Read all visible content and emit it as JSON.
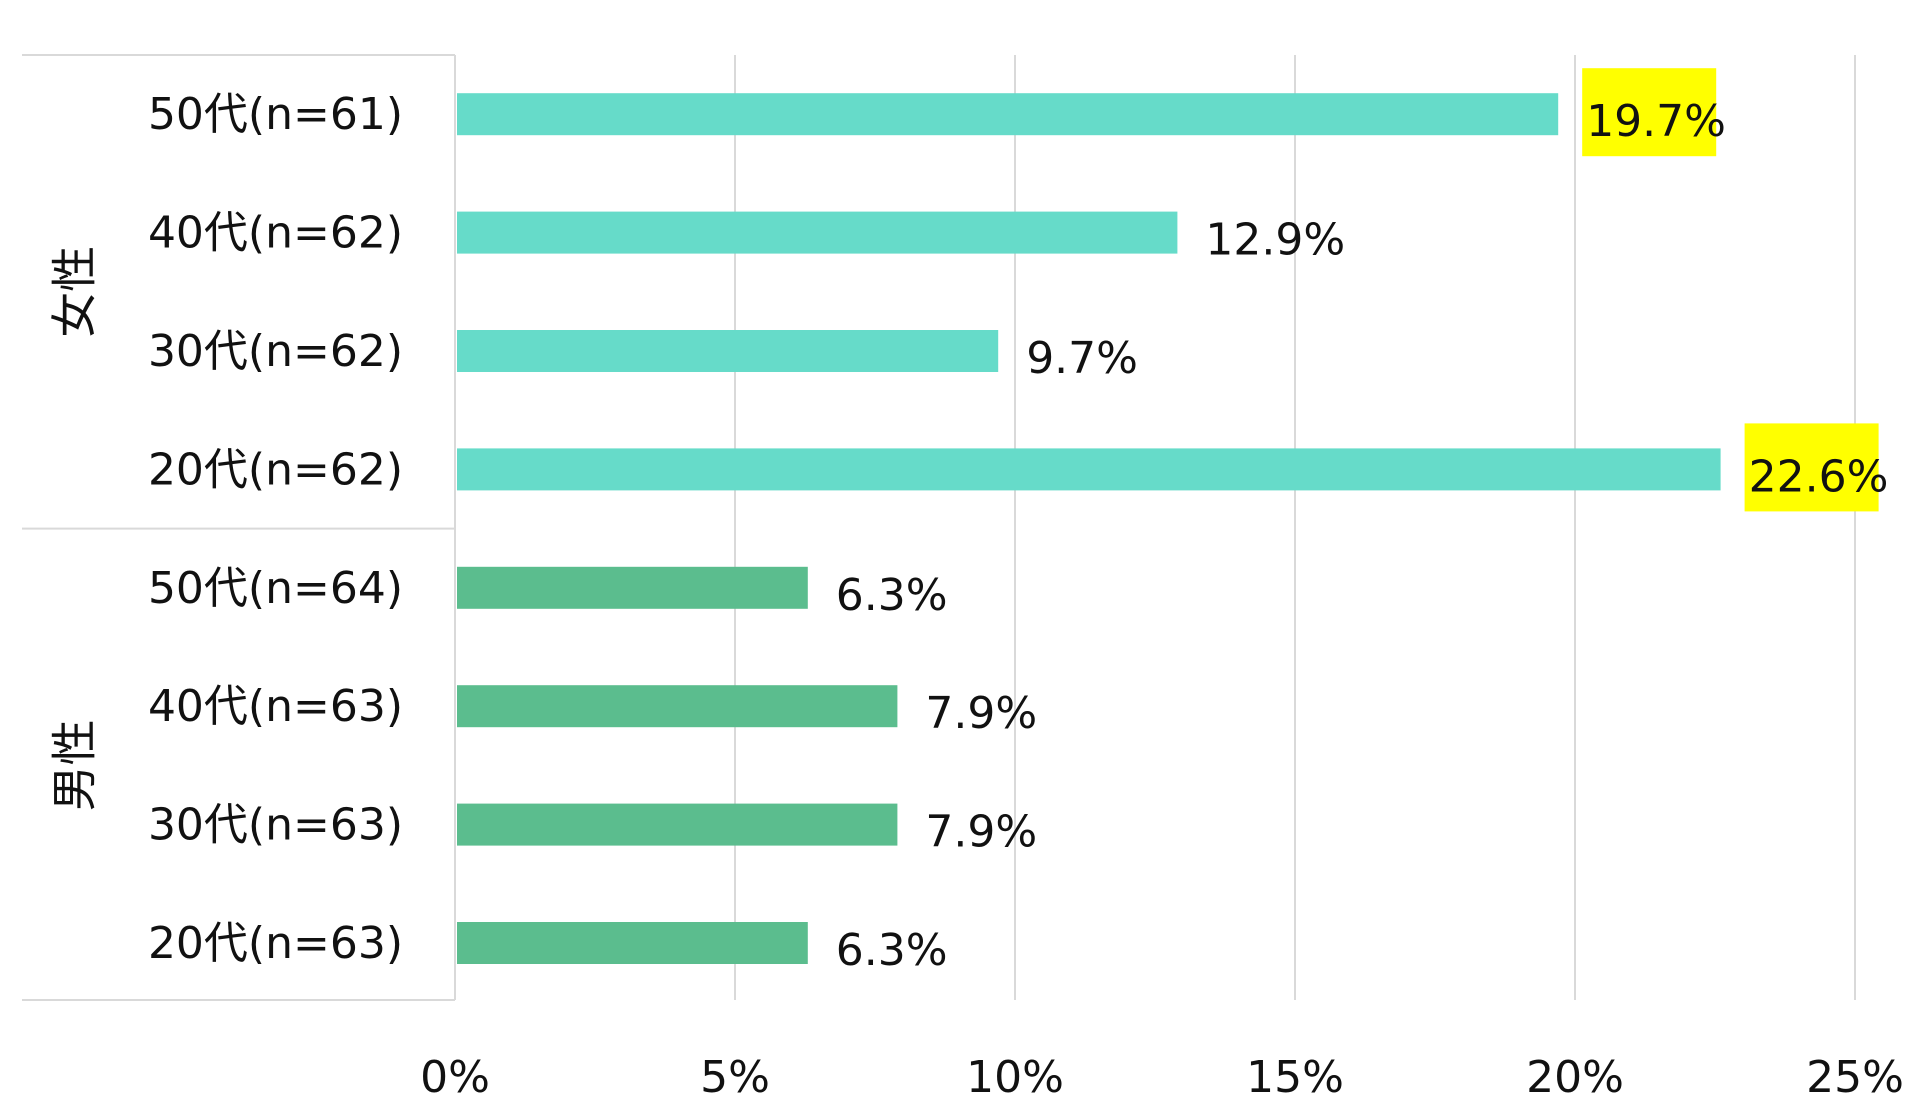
{
  "chart_data": {
    "type": "bar",
    "orientation": "horizontal",
    "title": "",
    "xlabel": "",
    "ylabel": "",
    "xlim": [
      0,
      25
    ],
    "x_ticks": [
      {
        "value": 0,
        "label": "0%"
      },
      {
        "value": 5,
        "label": "5%"
      },
      {
        "value": 10,
        "label": "10%"
      },
      {
        "value": 15,
        "label": "15%"
      },
      {
        "value": 20,
        "label": "20%"
      },
      {
        "value": 25,
        "label": "25%"
      }
    ],
    "grid": "vertical",
    "legend": "none",
    "highlight_color": "#ffff00",
    "groups": [
      {
        "name": "女性",
        "color": "#66dbc9",
        "bars": [
          {
            "label": "50代(n=61)",
            "value": 19.7,
            "value_label": "19.7%",
            "highlight": true
          },
          {
            "label": "40代(n=62)",
            "value": 12.9,
            "value_label": "12.9%",
            "highlight": false
          },
          {
            "label": "30代(n=62)",
            "value": 9.7,
            "value_label": "9.7%",
            "highlight": false
          },
          {
            "label": "20代(n=62)",
            "value": 22.6,
            "value_label": "22.6%",
            "highlight": true
          }
        ]
      },
      {
        "name": "男性",
        "color": "#5bbd8e",
        "bars": [
          {
            "label": "50代(n=64)",
            "value": 6.3,
            "value_label": "6.3%",
            "highlight": false
          },
          {
            "label": "40代(n=63)",
            "value": 7.9,
            "value_label": "7.9%",
            "highlight": false
          },
          {
            "label": "30代(n=63)",
            "value": 7.9,
            "value_label": "7.9%",
            "highlight": false
          },
          {
            "label": "20代(n=63)",
            "value": 6.3,
            "value_label": "6.3%",
            "highlight": false
          }
        ]
      }
    ]
  }
}
